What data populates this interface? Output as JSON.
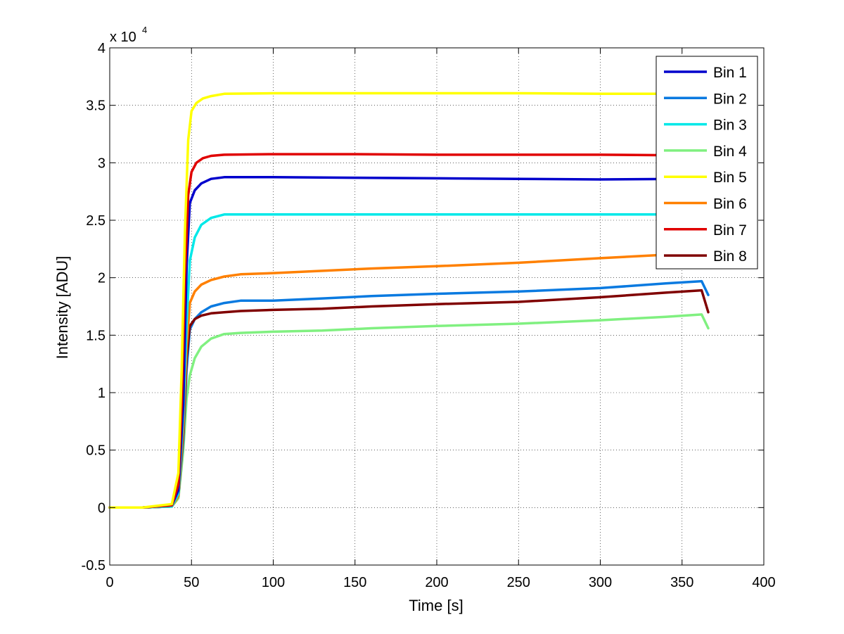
{
  "chart_data": {
    "type": "line",
    "xlabel": "Time [s]",
    "ylabel": "Intensity [ADU]",
    "xlim": [
      0,
      400
    ],
    "ylim": [
      -0.5,
      4
    ],
    "y_scale_base": "x 10",
    "y_scale_exponent": "4",
    "x_ticks": [
      "0",
      "50",
      "100",
      "150",
      "200",
      "250",
      "300",
      "350",
      "400"
    ],
    "x_tick_values": [
      0,
      50,
      100,
      150,
      200,
      250,
      300,
      350,
      400
    ],
    "y_ticks": [
      "-0.5",
      "0",
      "0.5",
      "1",
      "1.5",
      "2",
      "2.5",
      "3",
      "3.5",
      "4"
    ],
    "y_tick_values": [
      -0.5,
      0,
      0.5,
      1,
      1.5,
      2,
      2.5,
      3,
      3.5,
      4
    ],
    "grid": true,
    "legend_position": "top-right",
    "series": [
      {
        "name": "Bin 1",
        "color": "#0000cc",
        "x": [
          0,
          20,
          38,
          42,
          45,
          47,
          49,
          52,
          56,
          62,
          70,
          100,
          150,
          200,
          250,
          300,
          350,
          362
        ],
        "y": [
          0,
          0,
          0.02,
          0.15,
          0.9,
          2.1,
          2.65,
          2.76,
          2.82,
          2.86,
          2.875,
          2.875,
          2.87,
          2.865,
          2.86,
          2.855,
          2.86,
          2.85
        ]
      },
      {
        "name": "Bin 2",
        "color": "#0a7ae0",
        "x": [
          0,
          20,
          38,
          42,
          45,
          47,
          49,
          52,
          56,
          62,
          70,
          80,
          100,
          130,
          160,
          200,
          250,
          300,
          340,
          362,
          366
        ],
        "y": [
          0,
          0,
          0.01,
          0.1,
          0.6,
          1.2,
          1.55,
          1.64,
          1.7,
          1.75,
          1.78,
          1.8,
          1.8,
          1.82,
          1.84,
          1.86,
          1.88,
          1.91,
          1.95,
          1.97,
          1.85
        ]
      },
      {
        "name": "Bin 3",
        "color": "#00e8e8",
        "x": [
          0,
          20,
          38,
          42,
          45,
          47,
          49,
          52,
          56,
          62,
          70,
          100,
          150,
          200,
          250,
          300,
          350,
          362
        ],
        "y": [
          0,
          0,
          0.01,
          0.12,
          0.8,
          1.6,
          2.15,
          2.35,
          2.46,
          2.52,
          2.55,
          2.55,
          2.55,
          2.55,
          2.55,
          2.55,
          2.55,
          2.55
        ]
      },
      {
        "name": "Bin 4",
        "color": "#80f080",
        "x": [
          0,
          20,
          38,
          42,
          45,
          47,
          49,
          52,
          56,
          62,
          70,
          80,
          100,
          130,
          160,
          200,
          250,
          300,
          340,
          362,
          366
        ],
        "y": [
          0,
          0,
          0.01,
          0.08,
          0.5,
          0.95,
          1.15,
          1.3,
          1.4,
          1.47,
          1.51,
          1.52,
          1.53,
          1.54,
          1.56,
          1.58,
          1.6,
          1.63,
          1.66,
          1.68,
          1.56
        ]
      },
      {
        "name": "Bin 5",
        "color": "#ffff00",
        "x": [
          0,
          20,
          38,
          42,
          44,
          46,
          48,
          50,
          53,
          57,
          62,
          70,
          100,
          150,
          200,
          250,
          300,
          350,
          362
        ],
        "y": [
          0,
          0,
          0.03,
          0.3,
          1.2,
          2.4,
          3.2,
          3.45,
          3.52,
          3.56,
          3.58,
          3.6,
          3.605,
          3.605,
          3.605,
          3.605,
          3.6,
          3.6,
          3.6
        ]
      },
      {
        "name": "Bin 6",
        "color": "#ff8000",
        "x": [
          0,
          20,
          38,
          42,
          45,
          47,
          49,
          52,
          56,
          62,
          70,
          80,
          100,
          130,
          160,
          200,
          250,
          300,
          340,
          362,
          366
        ],
        "y": [
          0,
          0,
          0.01,
          0.1,
          0.7,
          1.4,
          1.78,
          1.88,
          1.94,
          1.98,
          2.01,
          2.03,
          2.04,
          2.06,
          2.08,
          2.1,
          2.13,
          2.17,
          2.2,
          2.22,
          2.2
        ]
      },
      {
        "name": "Bin 7",
        "color": "#e00000",
        "x": [
          0,
          20,
          38,
          42,
          44,
          46,
          48,
          50,
          53,
          57,
          62,
          70,
          100,
          150,
          200,
          250,
          300,
          350,
          362
        ],
        "y": [
          0,
          0,
          0.02,
          0.2,
          0.9,
          2.0,
          2.72,
          2.92,
          3.0,
          3.04,
          3.06,
          3.07,
          3.075,
          3.075,
          3.07,
          3.07,
          3.07,
          3.065,
          3.065
        ]
      },
      {
        "name": "Bin 8",
        "color": "#800000",
        "x": [
          0,
          20,
          38,
          42,
          45,
          47,
          49,
          52,
          56,
          62,
          70,
          80,
          100,
          130,
          160,
          200,
          250,
          300,
          340,
          362,
          366
        ],
        "y": [
          0,
          0,
          0.01,
          0.1,
          0.65,
          1.3,
          1.58,
          1.64,
          1.67,
          1.69,
          1.7,
          1.71,
          1.72,
          1.73,
          1.75,
          1.77,
          1.79,
          1.83,
          1.87,
          1.89,
          1.7
        ]
      }
    ]
  }
}
